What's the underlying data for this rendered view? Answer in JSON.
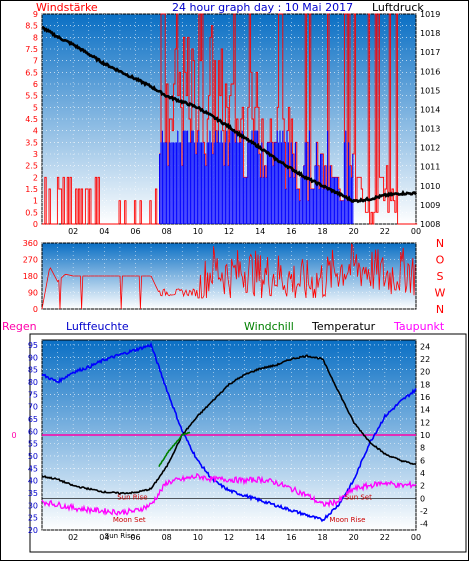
{
  "colors": {
    "bg_top": "#0a6fc4",
    "bg_bottom": "#ffffff",
    "red": "#ff0000",
    "blue": "#0000ff",
    "black": "#000000",
    "green": "#008000",
    "magenta": "#ff00ff",
    "title": "#0000cc",
    "regen": "#ff00aa",
    "luftfeuchte": "#0000cc",
    "frame": "#000000"
  },
  "header": {
    "windstaerke_label": "Windstärke",
    "title": "24 hour graph day : 10 Mai 2017",
    "luftdruck_label": "Luftdruck"
  },
  "mid_header": {
    "regen": "Regen",
    "luftfeuchte": "Luftfeuchte",
    "windchill": "Windchill",
    "temperatur": "Temperatur",
    "taupunkt": "Taupunkt"
  },
  "chart_data": [
    {
      "type": "line",
      "name": "wind-pressure",
      "y_left_ticks": [
        "0",
        "0.5",
        "1",
        "1.5",
        "2",
        "2.5",
        "3",
        "3.5",
        "4",
        "4.5",
        "5",
        "5.5",
        "6",
        "6.5",
        "7",
        "7.5",
        "8",
        "8.5",
        "9"
      ],
      "y_right_ticks": [
        "1008",
        "1009",
        "1010",
        "1011",
        "1012",
        "1013",
        "1014",
        "1015",
        "1016",
        "1017",
        "1018",
        "1019"
      ],
      "x_ticks": [
        "02",
        "04",
        "06",
        "08",
        "10",
        "12",
        "14",
        "16",
        "18",
        "20",
        "22",
        "00"
      ],
      "ylim_left": [
        0,
        9
      ],
      "ylim_right": [
        1008,
        1019
      ],
      "series": [
        {
          "name": "Windstärke",
          "x": [
            0,
            1,
            2,
            3,
            4,
            5,
            6,
            7,
            7.5,
            8,
            9,
            10,
            11,
            12,
            13,
            14,
            15,
            16,
            17,
            18,
            19,
            20,
            21,
            22,
            23,
            24
          ],
          "values": [
            0,
            2,
            0,
            2,
            0,
            0,
            0,
            0,
            2,
            4,
            5,
            5,
            5.5,
            4,
            4,
            4,
            3.5,
            3,
            2.5,
            2,
            1.5,
            2,
            0,
            2,
            0,
            0
          ]
        },
        {
          "name": "Luftdruck",
          "x": [
            0,
            1,
            2,
            3,
            4,
            5,
            6,
            7,
            8,
            9,
            10,
            11,
            12,
            13,
            14,
            15,
            16,
            17,
            18,
            19,
            20,
            21,
            22,
            23,
            24
          ],
          "values": [
            1018.3,
            1017.8,
            1017.4,
            1016.9,
            1016.4,
            1016.0,
            1015.6,
            1015.2,
            1014.7,
            1014.4,
            1014.1,
            1013.6,
            1013.1,
            1012.5,
            1012.0,
            1011.4,
            1010.9,
            1010.4,
            1010.0,
            1009.6,
            1009.2,
            1009.3,
            1009.5,
            1009.6,
            1009.6
          ]
        }
      ]
    },
    {
      "type": "line",
      "name": "wind-direction",
      "y_left_ticks": [
        "0",
        "90",
        "180",
        "270",
        "360"
      ],
      "y_right_ticks": [
        "N",
        "W",
        "S",
        "O",
        "N"
      ],
      "ylim": [
        0,
        360
      ],
      "series": [
        {
          "name": "Windrichtung",
          "x": [
            0,
            0.5,
            1,
            1.5,
            2,
            3,
            4,
            5,
            6,
            7,
            7.5,
            8,
            9,
            10,
            11,
            12,
            13,
            14,
            15,
            16,
            17,
            18,
            19,
            20,
            21,
            22,
            23,
            23.5,
            24
          ],
          "values": [
            0,
            230,
            150,
            190,
            180,
            180,
            180,
            180,
            180,
            180,
            90,
            90,
            95,
            90,
            230,
            180,
            220,
            180,
            190,
            160,
            140,
            160,
            220,
            230,
            220,
            180,
            200,
            220,
            180
          ]
        }
      ]
    },
    {
      "type": "line",
      "name": "humidity-temperature",
      "y_left_ticks": [
        "20",
        "25",
        "30",
        "35",
        "40",
        "45",
        "50",
        "55",
        "60",
        "65",
        "70",
        "75",
        "80",
        "85",
        "90",
        "95"
      ],
      "y_right_ticks": [
        "-4",
        "-2",
        "0",
        "2",
        "4",
        "6",
        "8",
        "10",
        "12",
        "14",
        "16",
        "18",
        "20",
        "22",
        "24"
      ],
      "ylim_left": [
        20,
        97
      ],
      "ylim_right": [
        -5,
        25
      ],
      "regen_zero_label": "0",
      "annotations": [
        "Sun Rise",
        "Moon Set",
        "Sun Set",
        "Moon Rise",
        "Sun Rise"
      ],
      "series": [
        {
          "name": "Luftfeuchte",
          "x": [
            0,
            1,
            2,
            3,
            4,
            5,
            6,
            7,
            8,
            9,
            10,
            11,
            12,
            13,
            14,
            15,
            16,
            17,
            18,
            19,
            20,
            21,
            22,
            23,
            24
          ],
          "values": [
            83,
            80,
            84,
            86,
            89,
            91,
            93,
            95,
            77,
            60,
            48,
            40,
            36,
            34,
            32,
            30,
            28,
            26,
            24,
            30,
            40,
            55,
            66,
            72,
            77
          ]
        },
        {
          "name": "Temperatur",
          "x": [
            0,
            1,
            2,
            3,
            4,
            5,
            6,
            7,
            8,
            9,
            10,
            11,
            12,
            13,
            14,
            15,
            16,
            17,
            18,
            19,
            20,
            21,
            22,
            23,
            24
          ],
          "values": [
            3.5,
            3.0,
            2.0,
            1.5,
            1.0,
            0.8,
            0.9,
            1.5,
            5.0,
            10.0,
            13.0,
            15.5,
            18.0,
            19.5,
            20.5,
            21.0,
            22.0,
            22.5,
            22.0,
            17.0,
            12.0,
            9.0,
            7.0,
            6.0,
            5.3
          ]
        },
        {
          "name": "Windchill",
          "x": [
            7.5,
            8,
            8.5,
            9,
            9.5
          ],
          "values": [
            5,
            7,
            8.5,
            10,
            10.5
          ]
        },
        {
          "name": "Taupunkt",
          "x": [
            0,
            1,
            2,
            3,
            4,
            5,
            6,
            7,
            8,
            9,
            10,
            11,
            12,
            13,
            14,
            15,
            16,
            17,
            18,
            19,
            20,
            21,
            22,
            23,
            24
          ],
          "values": [
            -0.5,
            -1.0,
            -1.5,
            -1.8,
            -2.0,
            -2.2,
            -2.0,
            -1.0,
            2.5,
            3.0,
            3.5,
            3.0,
            3.0,
            2.8,
            3.0,
            2.5,
            1.5,
            0.5,
            -1.0,
            -0.5,
            1.5,
            2.0,
            2.5,
            2.0,
            2.2
          ]
        }
      ]
    }
  ]
}
